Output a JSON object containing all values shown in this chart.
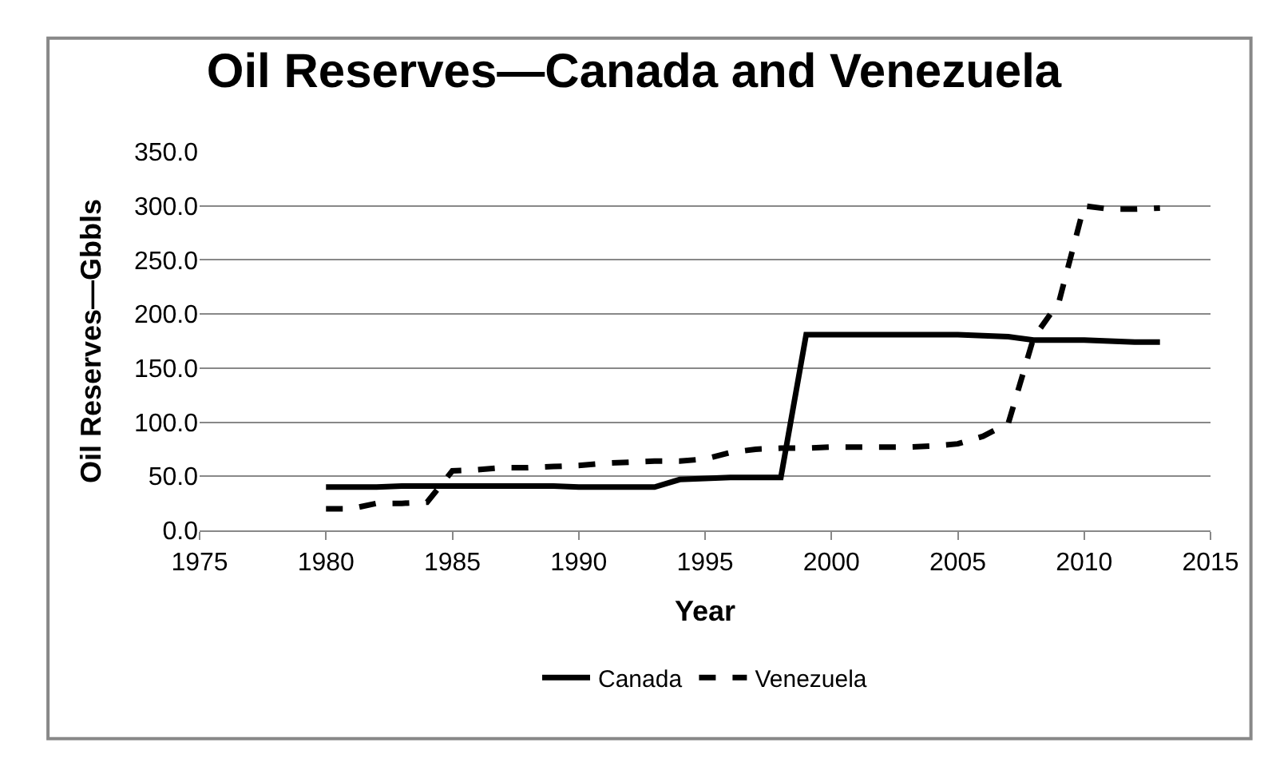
{
  "chart_data": {
    "type": "line",
    "title": "Oil Reserves—Canada and Venezuela",
    "xlabel": "Year",
    "ylabel": "Oil Reserves—Gbbls",
    "x": [
      1980,
      1981,
      1982,
      1983,
      1984,
      1985,
      1986,
      1987,
      1988,
      1989,
      1990,
      1991,
      1992,
      1993,
      1994,
      1995,
      1996,
      1997,
      1998,
      1999,
      2000,
      2001,
      2002,
      2003,
      2004,
      2005,
      2006,
      2007,
      2008,
      2009,
      2010,
      2011,
      2012,
      2013
    ],
    "series": [
      {
        "name": "Canada",
        "color": "#000000",
        "line_style": "solid",
        "values": [
          40,
          40,
          40,
          41,
          41,
          41,
          41,
          41,
          41,
          41,
          40,
          40,
          40,
          40,
          47,
          48,
          49,
          49,
          49,
          181,
          181,
          181,
          181,
          181,
          181,
          181,
          180,
          179,
          176,
          176,
          176,
          175,
          174,
          174
        ]
      },
      {
        "name": "Venezuela",
        "color": "#000000",
        "line_style": "dashed",
        "values": [
          20,
          20,
          25,
          25,
          26,
          55,
          56,
          58,
          58,
          59,
          60,
          62,
          63,
          64,
          64,
          66,
          72,
          75,
          76,
          76,
          77,
          77,
          77,
          77,
          78,
          80,
          87,
          99,
          178,
          211,
          300,
          297,
          297,
          298
        ]
      }
    ],
    "xlim": [
      1975,
      2015
    ],
    "xticks": [
      1975,
      1980,
      1985,
      1990,
      1995,
      2000,
      2005,
      2010,
      2015
    ],
    "ylim": [
      0,
      350
    ],
    "yticks": [
      {
        "value": 0,
        "label": "0.0"
      },
      {
        "value": 50,
        "label": "50.0"
      },
      {
        "value": 100,
        "label": "100.0"
      },
      {
        "value": 150,
        "label": "150.0"
      },
      {
        "value": 200,
        "label": "200.0"
      },
      {
        "value": 250,
        "label": "250.0"
      },
      {
        "value": 300,
        "label": "300.0"
      },
      {
        "value": 350,
        "label": "350.0"
      }
    ],
    "grid": "y",
    "legend": "bottom",
    "marker": "none"
  }
}
